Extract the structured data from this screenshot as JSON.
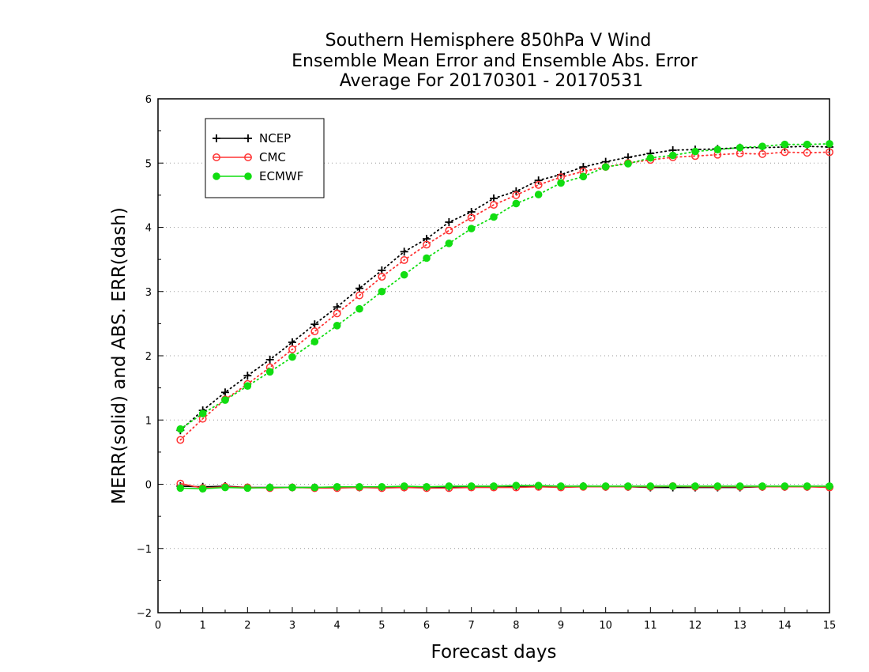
{
  "chart_data": {
    "type": "line",
    "title": [
      "Southern Hemisphere 850hPa V Wind",
      "Ensemble Mean Error and Ensemble Abs. Error",
      "Average For 20170301 - 20170531"
    ],
    "xlabel": "Forecast days",
    "ylabel": "MERR(solid) and ABS. ERR(dash)",
    "xlim": [
      0,
      15
    ],
    "ylim": [
      -2,
      6
    ],
    "xticks": [
      "0",
      "1",
      "2",
      "3",
      "4",
      "5",
      "6",
      "7",
      "8",
      "9",
      "10",
      "11",
      "12",
      "13",
      "14",
      "15"
    ],
    "yticks": [
      "−2",
      "−1",
      "0",
      "1",
      "2",
      "3",
      "4",
      "5",
      "6"
    ],
    "grid": "horizontal dotted",
    "legend_position": "top-left",
    "x": [
      0.5,
      1,
      1.5,
      2,
      2.5,
      3,
      3.5,
      4,
      4.5,
      5,
      5.5,
      6,
      6.5,
      7,
      7.5,
      8,
      8.5,
      9,
      9.5,
      10,
      10.5,
      11,
      11.5,
      12,
      12.5,
      13,
      13.5,
      14,
      14.5,
      15
    ],
    "series": [
      {
        "name": "NCEP",
        "color": "#000000",
        "marker": "plus",
        "abs_err": [
          0.84,
          1.15,
          1.43,
          1.69,
          1.94,
          2.21,
          2.49,
          2.76,
          3.05,
          3.33,
          3.62,
          3.82,
          4.08,
          4.24,
          4.45,
          4.56,
          4.73,
          4.82,
          4.94,
          5.02,
          5.09,
          5.15,
          5.2,
          5.21,
          5.22,
          5.24,
          5.24,
          5.25,
          5.26,
          5.25
        ],
        "mean_err": [
          -0.03,
          -0.04,
          -0.03,
          -0.05,
          -0.05,
          -0.05,
          -0.05,
          -0.05,
          -0.05,
          -0.05,
          -0.05,
          -0.05,
          -0.04,
          -0.04,
          -0.04,
          -0.03,
          -0.03,
          -0.04,
          -0.03,
          -0.04,
          -0.04,
          -0.05,
          -0.05,
          -0.05,
          -0.05,
          -0.05,
          -0.04,
          -0.04,
          -0.04,
          -0.04
        ]
      },
      {
        "name": "CMC",
        "color": "#ff3333",
        "marker": "open-circle",
        "abs_err": [
          0.69,
          1.02,
          1.32,
          1.56,
          1.82,
          2.1,
          2.38,
          2.66,
          2.94,
          3.23,
          3.49,
          3.73,
          3.95,
          4.15,
          4.35,
          4.5,
          4.66,
          4.78,
          4.87,
          4.94,
          5.0,
          5.05,
          5.09,
          5.11,
          5.13,
          5.15,
          5.14,
          5.17,
          5.16,
          5.17
        ],
        "mean_err": [
          0.01,
          -0.06,
          -0.04,
          -0.05,
          -0.06,
          -0.05,
          -0.06,
          -0.06,
          -0.05,
          -0.06,
          -0.05,
          -0.06,
          -0.06,
          -0.05,
          -0.05,
          -0.05,
          -0.04,
          -0.05,
          -0.04,
          -0.04,
          -0.04,
          -0.04,
          -0.03,
          -0.04,
          -0.04,
          -0.04,
          -0.04,
          -0.04,
          -0.04,
          -0.05
        ]
      },
      {
        "name": "ECMWF",
        "color": "#11dd11",
        "marker": "filled-circle",
        "abs_err": [
          0.86,
          1.1,
          1.31,
          1.53,
          1.75,
          1.98,
          2.22,
          2.47,
          2.73,
          3.0,
          3.26,
          3.52,
          3.75,
          3.98,
          4.16,
          4.37,
          4.51,
          4.69,
          4.79,
          4.94,
          4.99,
          5.08,
          5.12,
          5.18,
          5.21,
          5.24,
          5.26,
          5.29,
          5.29,
          5.3
        ],
        "mean_err": [
          -0.06,
          -0.07,
          -0.05,
          -0.06,
          -0.05,
          -0.05,
          -0.05,
          -0.04,
          -0.04,
          -0.04,
          -0.03,
          -0.04,
          -0.03,
          -0.03,
          -0.03,
          -0.02,
          -0.02,
          -0.03,
          -0.03,
          -0.03,
          -0.03,
          -0.03,
          -0.03,
          -0.03,
          -0.03,
          -0.03,
          -0.03,
          -0.03,
          -0.03,
          -0.03
        ]
      }
    ]
  }
}
